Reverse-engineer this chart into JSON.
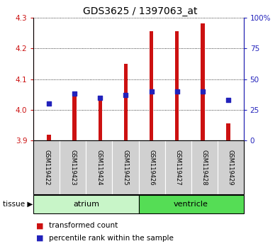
{
  "title": "GDS3625 / 1397063_at",
  "samples": [
    "GSM119422",
    "GSM119423",
    "GSM119424",
    "GSM119425",
    "GSM119426",
    "GSM119427",
    "GSM119428",
    "GSM119429"
  ],
  "red_values": [
    3.92,
    4.06,
    4.04,
    4.15,
    4.255,
    4.255,
    4.28,
    3.955
  ],
  "blue_percentiles": [
    30,
    38,
    35,
    37,
    40,
    40,
    40,
    33
  ],
  "bar_bottom": 3.9,
  "ylim_left": [
    3.9,
    4.3
  ],
  "ylim_right": [
    0,
    100
  ],
  "yticks_left": [
    3.9,
    4.0,
    4.1,
    4.2,
    4.3
  ],
  "yticks_right": [
    0,
    25,
    50,
    75,
    100
  ],
  "ytick_right_labels": [
    "0",
    "25",
    "50",
    "75",
    "100%"
  ],
  "grid_values": [
    4.0,
    4.1,
    4.2,
    4.3
  ],
  "tissue_groups": [
    {
      "label": "atrium",
      "indices": [
        0,
        1,
        2,
        3
      ],
      "color": "#c8f5c8"
    },
    {
      "label": "ventricle",
      "indices": [
        4,
        5,
        6,
        7
      ],
      "color": "#55dd55"
    }
  ],
  "bar_color": "#cc1111",
  "blue_color": "#2222bb",
  "bar_width": 0.15,
  "background_color": "#ffffff",
  "tick_color_left": "#cc1111",
  "tick_color_right": "#2222bb",
  "sample_box_color": "#d0d0d0"
}
